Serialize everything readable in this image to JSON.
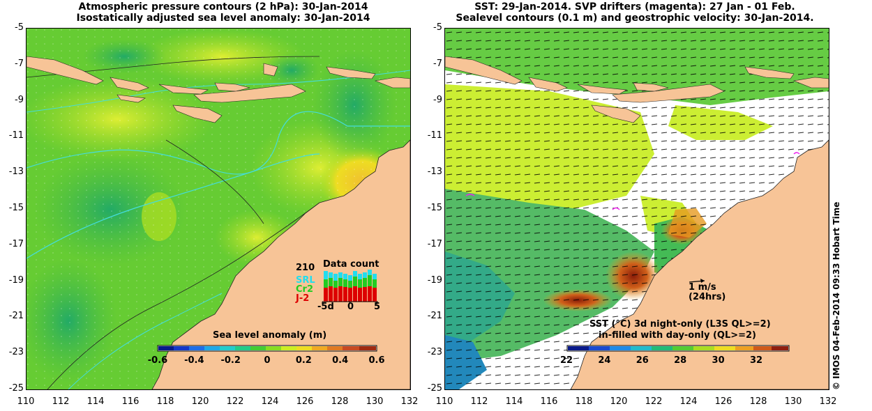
{
  "left": {
    "title_line1": "Atmospheric pressure contours (2 hPa): 30-Jan-2014",
    "title_line2": "Isostatically adjusted sea level anomaly: 30-Jan-2014",
    "colorbar_title": "Sea level anomaly (m)",
    "colorbar_ticks": [
      "-0.6",
      "-0.4",
      "-0.2",
      "0",
      "0.2",
      "0.4",
      "0.6"
    ],
    "data_count": {
      "title": "Data count",
      "max_label": "210",
      "series": [
        {
          "name": "SRL",
          "color": "#22ddee"
        },
        {
          "name": "Cr2",
          "color": "#22cc22"
        },
        {
          "name": "J-2",
          "color": "#dd0000"
        }
      ],
      "x_ticks": [
        "-5d",
        "0",
        "5"
      ]
    }
  },
  "right": {
    "title_line1": "SST: 29-Jan-2014. SVP drifters (magenta): 27 Jan - 01 Feb.",
    "title_line2": "Sealevel contours (0.1 m) and geostrophic velocity: 30-Jan-2014.",
    "colorbar_title_line1": "SST (°C)  3d night-only (L3S QL>=2)",
    "colorbar_title_line2": "in-filled with day-only (QL>=2)",
    "colorbar_ticks": [
      "22",
      "24",
      "26",
      "28",
      "30",
      "32"
    ],
    "velocity_scale_label": "1 m/s",
    "velocity_scale_sub": "(24hrs)"
  },
  "axes": {
    "y_ticks": [
      "-5",
      "-7",
      "-9",
      "-11",
      "-13",
      "-15",
      "-17",
      "-19",
      "-21",
      "-23",
      "-25"
    ],
    "x_ticks": [
      "110",
      "112",
      "114",
      "116",
      "118",
      "120",
      "122",
      "124",
      "126",
      "128",
      "130",
      "132"
    ]
  },
  "credit": "© IMOS 04-Feb-2014 09:33 Hobart Time",
  "colors": {
    "land": "#f7c497",
    "ssla_green": "#66cc22",
    "ssla_yellow": "#ddee22",
    "contour_cyan": "#44dddd"
  }
}
